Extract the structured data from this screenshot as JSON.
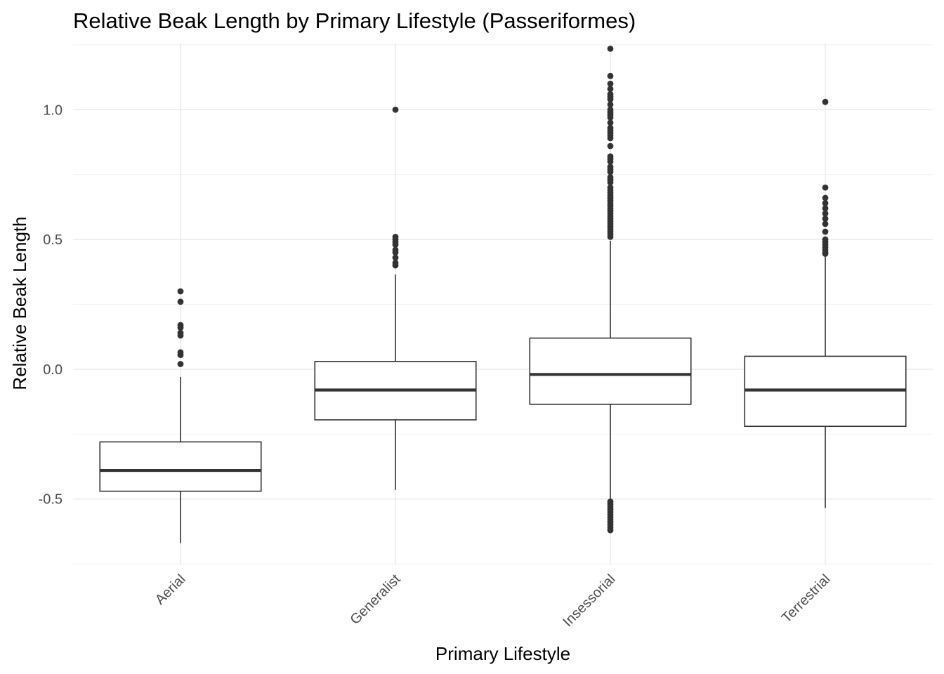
{
  "chart_data": {
    "type": "boxplot",
    "title": "Relative Beak Length by Primary Lifestyle (Passeriformes)",
    "xlabel": "Primary Lifestyle",
    "ylabel": "Relative Beak Length",
    "ylim": [
      -0.755,
      1.255
    ],
    "yticks": [
      -0.5,
      0.0,
      0.5,
      1.0
    ],
    "ytick_labels": [
      "-0.5",
      "0.0",
      "0.5",
      "1.0"
    ],
    "grid": true,
    "categories": [
      "Aerial",
      "Generalist",
      "Insessorial",
      "Terrestrial"
    ],
    "boxes": [
      {
        "category": "Aerial",
        "q1": -0.47,
        "median": -0.39,
        "q3": -0.28,
        "whisker_low": -0.67,
        "whisker_high": -0.03,
        "outliers": [
          0.3,
          0.26,
          0.17,
          0.16,
          0.14,
          0.13,
          0.065,
          0.055,
          0.02
        ]
      },
      {
        "category": "Generalist",
        "q1": -0.195,
        "median": -0.08,
        "q3": 0.03,
        "whisker_low": -0.465,
        "whisker_high": 0.365,
        "outliers": [
          1.0,
          0.51,
          0.5,
          0.49,
          0.48,
          0.46,
          0.45,
          0.43,
          0.41,
          0.4
        ]
      },
      {
        "category": "Insessorial",
        "q1": -0.135,
        "median": -0.02,
        "q3": 0.12,
        "whisker_low": -0.505,
        "whisker_high": 0.495,
        "outliers": [
          1.235,
          1.13,
          1.1,
          1.08,
          1.06,
          1.05,
          1.04,
          1.02,
          1.0,
          0.99,
          0.98,
          0.97,
          0.95,
          0.93,
          0.92,
          0.91,
          0.9,
          0.89,
          0.86,
          0.82,
          0.81,
          0.8,
          0.78,
          0.77,
          0.76,
          0.74,
          0.73,
          0.72,
          0.7,
          0.69,
          0.68,
          0.67,
          0.66,
          0.65,
          0.64,
          0.63,
          0.62,
          0.61,
          0.6,
          0.59,
          0.58,
          0.57,
          0.56,
          0.55,
          0.54,
          0.53,
          0.52,
          0.51,
          -0.51,
          -0.52,
          -0.53,
          -0.54,
          -0.55,
          -0.56,
          -0.57,
          -0.58,
          -0.59,
          -0.6,
          -0.61,
          -0.62
        ]
      },
      {
        "category": "Terrestrial",
        "q1": -0.22,
        "median": -0.08,
        "q3": 0.05,
        "whisker_low": -0.535,
        "whisker_high": 0.44,
        "outliers": [
          1.03,
          0.7,
          0.66,
          0.64,
          0.62,
          0.6,
          0.58,
          0.56,
          0.53,
          0.5,
          0.49,
          0.48,
          0.47,
          0.46,
          0.45,
          0.445
        ]
      }
    ]
  }
}
